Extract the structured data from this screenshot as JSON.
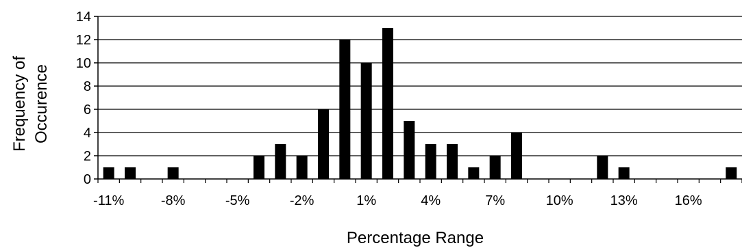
{
  "chart_data": {
    "type": "bar",
    "title": "",
    "xlabel": "Percentage Range",
    "ylabel_lines": [
      "Frequency of",
      "Occurence"
    ],
    "ylim": [
      0,
      14
    ],
    "y_ticks": [
      0,
      2,
      4,
      6,
      8,
      10,
      12,
      14
    ],
    "categories": [
      "-11%",
      "-10%",
      "-9%",
      "-8%",
      "-7%",
      "-6%",
      "-5%",
      "-4%",
      "-3%",
      "-2%",
      "-1%",
      "0%",
      "1%",
      "2%",
      "3%",
      "4%",
      "5%",
      "6%",
      "7%",
      "8%",
      "9%",
      "10%",
      "11%",
      "12%",
      "13%",
      "14%",
      "15%",
      "16%",
      "17%",
      "18%"
    ],
    "x_tick_labels": [
      "-11%",
      "-8%",
      "-5%",
      "-2%",
      "1%",
      "4%",
      "7%",
      "10%",
      "13%",
      "16%"
    ],
    "values": [
      1,
      1,
      0,
      1,
      0,
      0,
      0,
      2,
      3,
      2,
      6,
      12,
      10,
      13,
      5,
      3,
      3,
      1,
      2,
      4,
      0,
      0,
      0,
      2,
      1,
      0,
      0,
      0,
      0,
      1
    ],
    "grid": true,
    "bar_color": "#000000",
    "grid_color": "#000000",
    "background": "#ffffff",
    "legend": "none"
  }
}
